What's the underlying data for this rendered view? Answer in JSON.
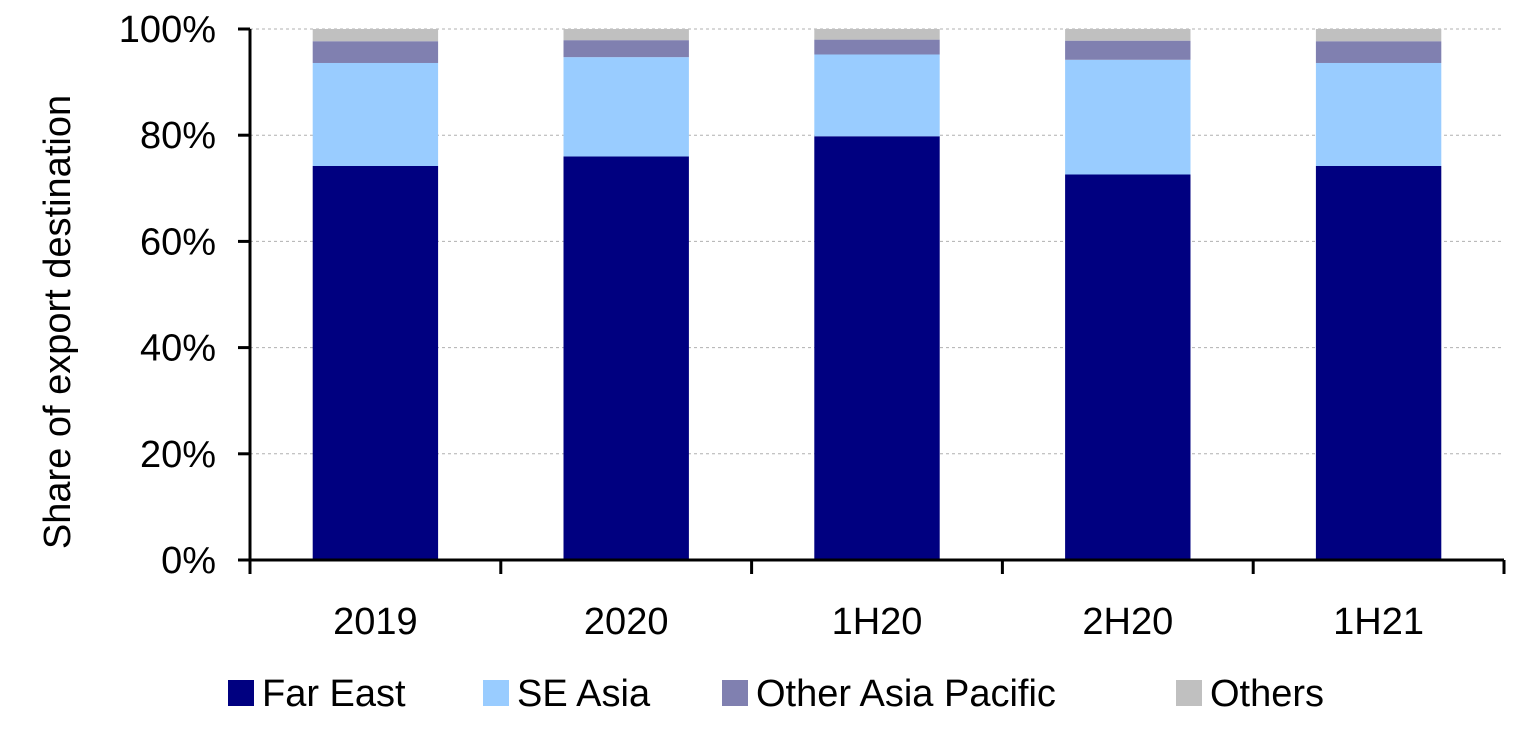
{
  "chart_data": {
    "type": "bar",
    "stacked": true,
    "percent": true,
    "categories": [
      "2019",
      "2020",
      "1H20",
      "2H20",
      "1H21"
    ],
    "series": [
      {
        "name": "Far East",
        "color": "#000080",
        "values": [
          74.2,
          76.0,
          79.8,
          72.6,
          74.2
        ]
      },
      {
        "name": "SE Asia",
        "color": "#99CCFF",
        "values": [
          19.4,
          18.7,
          15.4,
          21.6,
          19.4
        ]
      },
      {
        "name": "Other Asia Pacific",
        "color": "#8080B0",
        "values": [
          4.1,
          3.2,
          2.8,
          3.6,
          4.1
        ]
      },
      {
        "name": "Others",
        "color": "#C0C0C0",
        "values": [
          2.3,
          2.1,
          2.0,
          2.2,
          2.3
        ]
      }
    ],
    "title": "",
    "xlabel": "",
    "ylabel": "Share of export destination",
    "ylim": [
      0,
      100
    ],
    "yticks": [
      "0%",
      "20%",
      "40%",
      "60%",
      "80%",
      "100%"
    ],
    "grid": true,
    "legend_position": "bottom"
  }
}
